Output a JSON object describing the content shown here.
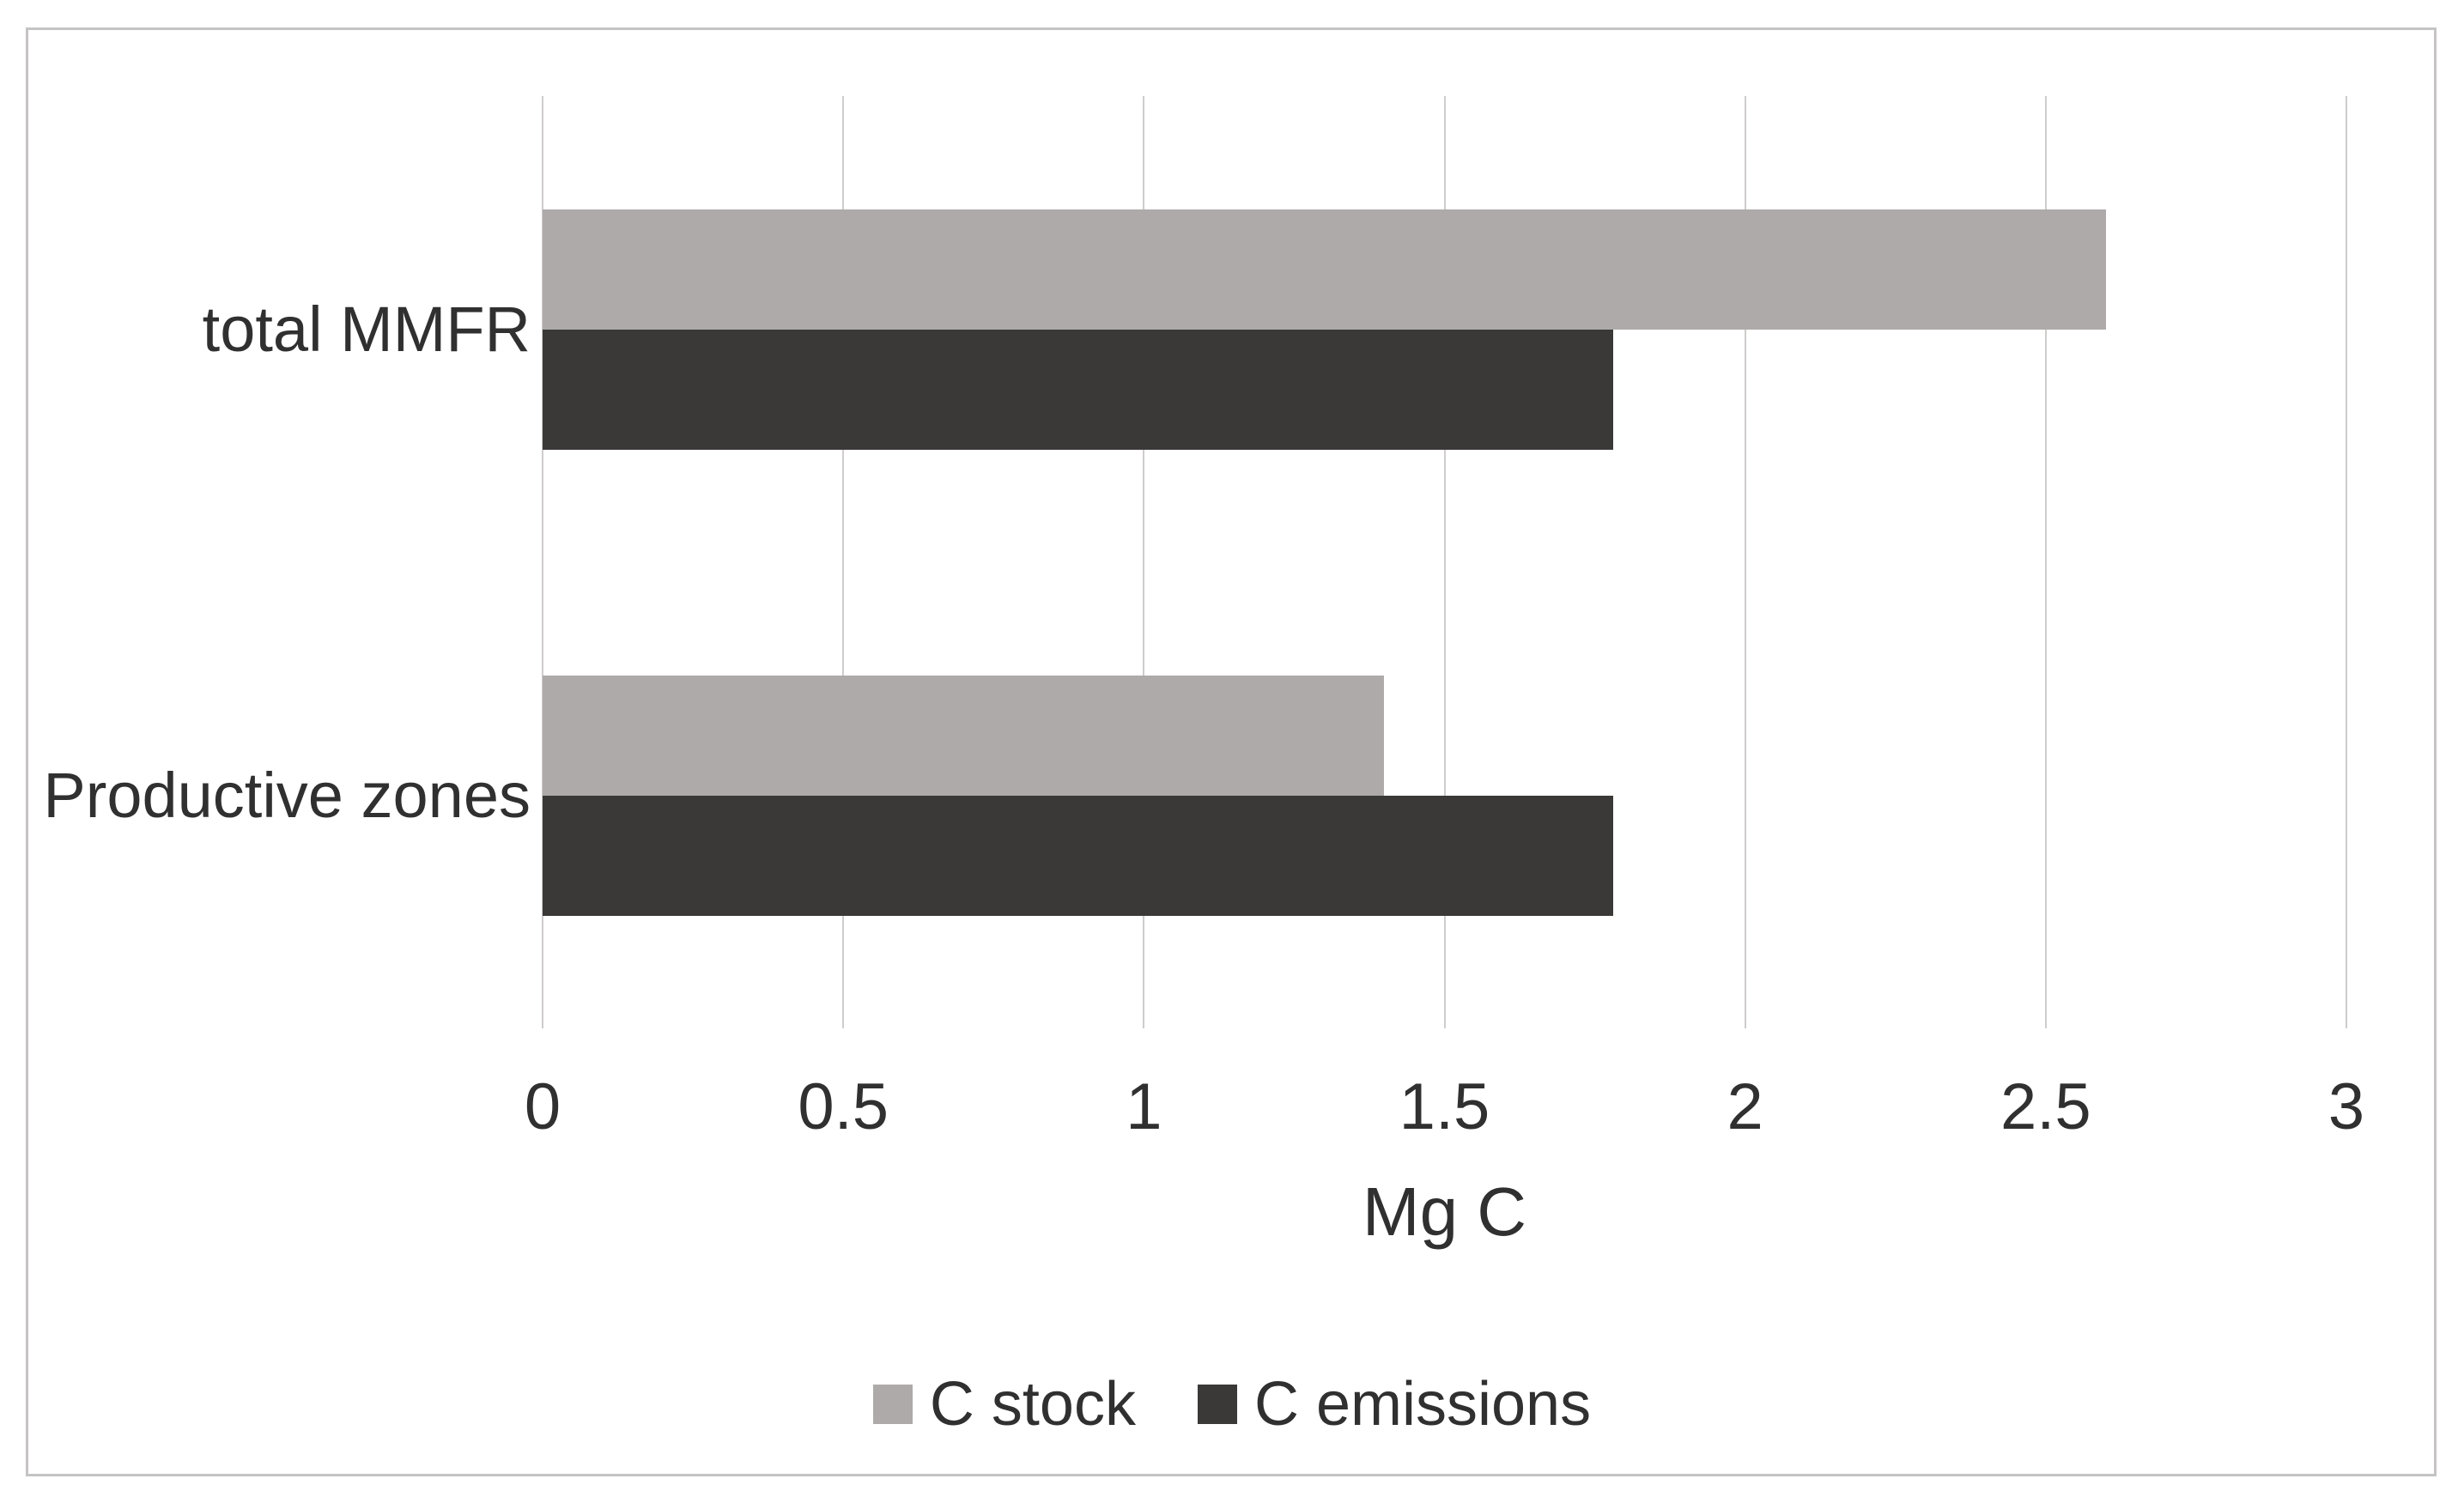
{
  "style": {
    "background": "#ffffff",
    "frame_border_color": "#c6c3c3",
    "grid_color": "#cfcccc",
    "text_color": "#303030"
  },
  "chart_data": {
    "type": "bar",
    "orientation": "horizontal",
    "title": "",
    "categories": [
      "total MMFR",
      "Productive zones"
    ],
    "series": [
      {
        "name": "C stock",
        "color": "#aeaaaa",
        "values": [
          2.6,
          1.4
        ]
      },
      {
        "name": "C emissions",
        "color": "#3b3838",
        "values": [
          1.78,
          1.78
        ]
      }
    ],
    "xlabel": "Mg C",
    "ylabel": "",
    "xlim": [
      0,
      3
    ],
    "xticks": [
      0,
      0.5,
      1,
      1.5,
      2,
      2.5,
      3
    ],
    "xtick_labels": [
      "0",
      "0.5",
      "1",
      "1.5",
      "2",
      "2.5",
      "3"
    ],
    "grid": true,
    "legend_position": "bottom"
  }
}
